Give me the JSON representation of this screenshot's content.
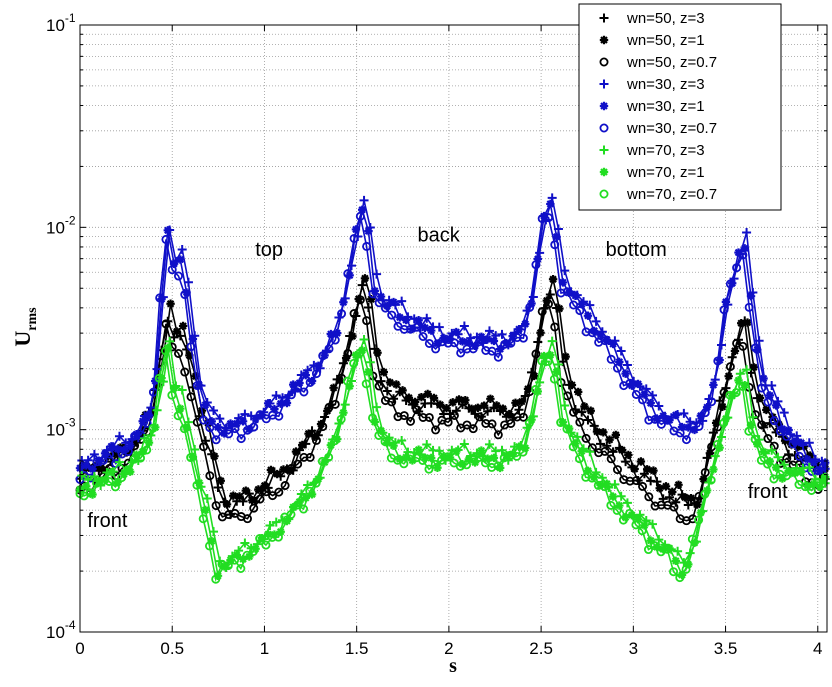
{
  "chart_data": {
    "type": "line",
    "xlabel": "s",
    "ylabel": "U",
    "ylabel_sub": "rms",
    "xlim": [
      0,
      4.05
    ],
    "ylim": [
      0.0001,
      0.1
    ],
    "yscale": "log",
    "grid": true,
    "legend_position": "top-right",
    "xticks": [
      0,
      0.5,
      1,
      1.5,
      2,
      2.5,
      3,
      3.5,
      4
    ],
    "xtick_labels": [
      "0",
      "0.5",
      "1",
      "1.5",
      "2",
      "2.5",
      "3",
      "3.5",
      "4"
    ],
    "yticks": [
      {
        "value": 0.1,
        "base": "10",
        "exp": "-1"
      },
      {
        "value": 0.01,
        "base": "10",
        "exp": "-2"
      },
      {
        "value": 0.001,
        "base": "10",
        "exp": "-3"
      },
      {
        "value": 0.0001,
        "base": "10",
        "exp": "-4"
      }
    ],
    "annotations": [
      {
        "text": "top",
        "x": 0.95,
        "y": 0.0072
      },
      {
        "text": "back",
        "x": 1.83,
        "y": 0.0085
      },
      {
        "text": "bottom",
        "x": 2.85,
        "y": 0.0072
      },
      {
        "text": "front",
        "x": 0.04,
        "y": 0.00033
      },
      {
        "text": "front",
        "x": 3.62,
        "y": 0.00046
      }
    ],
    "profiles": {
      "blue": [
        [
          0,
          0.00062
        ],
        [
          0.1,
          0.00072
        ],
        [
          0.2,
          0.0008
        ],
        [
          0.3,
          0.0009
        ],
        [
          0.38,
          0.0012
        ],
        [
          0.42,
          0.0022
        ],
        [
          0.46,
          0.0085
        ],
        [
          0.48,
          0.0095
        ],
        [
          0.52,
          0.0055
        ],
        [
          0.55,
          0.0072
        ],
        [
          0.58,
          0.005
        ],
        [
          0.62,
          0.0025
        ],
        [
          0.66,
          0.0013
        ],
        [
          0.72,
          0.0011
        ],
        [
          0.8,
          0.001
        ],
        [
          0.9,
          0.00108
        ],
        [
          1.0,
          0.0012
        ],
        [
          1.1,
          0.0014
        ],
        [
          1.2,
          0.0017
        ],
        [
          1.3,
          0.0021
        ],
        [
          1.4,
          0.0032
        ],
        [
          1.45,
          0.0055
        ],
        [
          1.5,
          0.0095
        ],
        [
          1.53,
          0.012
        ],
        [
          1.56,
          0.0098
        ],
        [
          1.6,
          0.0052
        ],
        [
          1.65,
          0.0042
        ],
        [
          1.7,
          0.0039
        ],
        [
          1.8,
          0.0034
        ],
        [
          1.9,
          0.003
        ],
        [
          2.0,
          0.0028
        ],
        [
          2.1,
          0.0028
        ],
        [
          2.2,
          0.0027
        ],
        [
          2.3,
          0.0027
        ],
        [
          2.4,
          0.003
        ],
        [
          2.45,
          0.0045
        ],
        [
          2.5,
          0.0095
        ],
        [
          2.54,
          0.0135
        ],
        [
          2.58,
          0.0095
        ],
        [
          2.62,
          0.0055
        ],
        [
          2.7,
          0.0042
        ],
        [
          2.8,
          0.0032
        ],
        [
          2.9,
          0.0024
        ],
        [
          3.0,
          0.0017
        ],
        [
          3.1,
          0.0013
        ],
        [
          3.2,
          0.0011
        ],
        [
          3.3,
          0.00105
        ],
        [
          3.38,
          0.0011
        ],
        [
          3.45,
          0.0018
        ],
        [
          3.5,
          0.0042
        ],
        [
          3.55,
          0.0058
        ],
        [
          3.6,
          0.0088
        ],
        [
          3.64,
          0.0045
        ],
        [
          3.7,
          0.0017
        ],
        [
          3.8,
          0.00115
        ],
        [
          3.9,
          0.0008
        ],
        [
          4.0,
          0.00068
        ],
        [
          4.05,
          0.00065
        ]
      ],
      "black": [
        [
          0,
          0.00055
        ],
        [
          0.1,
          0.00062
        ],
        [
          0.2,
          0.00068
        ],
        [
          0.3,
          0.00085
        ],
        [
          0.38,
          0.0011
        ],
        [
          0.42,
          0.0017
        ],
        [
          0.46,
          0.0032
        ],
        [
          0.48,
          0.0037
        ],
        [
          0.52,
          0.0024
        ],
        [
          0.55,
          0.0028
        ],
        [
          0.6,
          0.0019
        ],
        [
          0.65,
          0.0011
        ],
        [
          0.7,
          0.00075
        ],
        [
          0.76,
          0.00045
        ],
        [
          0.8,
          0.0004
        ],
        [
          0.9,
          0.00042
        ],
        [
          1.0,
          0.0005
        ],
        [
          1.1,
          0.00058
        ],
        [
          1.2,
          0.00075
        ],
        [
          1.3,
          0.001
        ],
        [
          1.4,
          0.0016
        ],
        [
          1.45,
          0.0025
        ],
        [
          1.5,
          0.004
        ],
        [
          1.53,
          0.0048
        ],
        [
          1.56,
          0.004
        ],
        [
          1.6,
          0.0022
        ],
        [
          1.65,
          0.0016
        ],
        [
          1.7,
          0.0014
        ],
        [
          1.8,
          0.0013
        ],
        [
          1.9,
          0.00125
        ],
        [
          2.0,
          0.0012
        ],
        [
          2.1,
          0.0012
        ],
        [
          2.2,
          0.00118
        ],
        [
          2.3,
          0.00115
        ],
        [
          2.4,
          0.0012
        ],
        [
          2.45,
          0.0018
        ],
        [
          2.5,
          0.0035
        ],
        [
          2.54,
          0.0048
        ],
        [
          2.58,
          0.0038
        ],
        [
          2.62,
          0.002
        ],
        [
          2.7,
          0.0012
        ],
        [
          2.8,
          0.00092
        ],
        [
          2.9,
          0.00075
        ],
        [
          3.0,
          0.00062
        ],
        [
          3.1,
          0.00052
        ],
        [
          3.2,
          0.00045
        ],
        [
          3.28,
          0.00041
        ],
        [
          3.35,
          0.00042
        ],
        [
          3.42,
          0.0008
        ],
        [
          3.48,
          0.0014
        ],
        [
          3.55,
          0.0025
        ],
        [
          3.6,
          0.0032
        ],
        [
          3.64,
          0.0018
        ],
        [
          3.7,
          0.0011
        ],
        [
          3.8,
          0.00085
        ],
        [
          3.9,
          0.0007
        ],
        [
          4.0,
          0.0006
        ],
        [
          4.05,
          0.00058
        ]
      ],
      "green": [
        [
          0,
          0.00052
        ],
        [
          0.1,
          0.00056
        ],
        [
          0.2,
          0.0006
        ],
        [
          0.3,
          0.0007
        ],
        [
          0.38,
          0.0009
        ],
        [
          0.42,
          0.0013
        ],
        [
          0.46,
          0.0024
        ],
        [
          0.48,
          0.0026
        ],
        [
          0.52,
          0.0013
        ],
        [
          0.55,
          0.0014
        ],
        [
          0.6,
          0.0009
        ],
        [
          0.65,
          0.0005
        ],
        [
          0.7,
          0.00035
        ],
        [
          0.74,
          0.00021
        ],
        [
          0.8,
          0.00022
        ],
        [
          0.9,
          0.00025
        ],
        [
          1.0,
          0.00029
        ],
        [
          1.1,
          0.00035
        ],
        [
          1.2,
          0.00045
        ],
        [
          1.3,
          0.0006
        ],
        [
          1.4,
          0.001
        ],
        [
          1.45,
          0.0016
        ],
        [
          1.5,
          0.0023
        ],
        [
          1.53,
          0.0025
        ],
        [
          1.56,
          0.0021
        ],
        [
          1.6,
          0.0012
        ],
        [
          1.65,
          0.0009
        ],
        [
          1.7,
          0.0008
        ],
        [
          1.8,
          0.00076
        ],
        [
          1.9,
          0.00074
        ],
        [
          2.0,
          0.00074
        ],
        [
          2.1,
          0.00075
        ],
        [
          2.2,
          0.00074
        ],
        [
          2.3,
          0.00074
        ],
        [
          2.4,
          0.0008
        ],
        [
          2.45,
          0.0012
        ],
        [
          2.5,
          0.002
        ],
        [
          2.54,
          0.0025
        ],
        [
          2.58,
          0.0021
        ],
        [
          2.62,
          0.0012
        ],
        [
          2.7,
          0.0008
        ],
        [
          2.8,
          0.0006
        ],
        [
          2.9,
          0.00046
        ],
        [
          3.0,
          0.00038
        ],
        [
          3.1,
          0.0003
        ],
        [
          3.2,
          0.00025
        ],
        [
          3.26,
          0.0002
        ],
        [
          3.32,
          0.00026
        ],
        [
          3.4,
          0.0005
        ],
        [
          3.48,
          0.001
        ],
        [
          3.55,
          0.0016
        ],
        [
          3.6,
          0.0019
        ],
        [
          3.64,
          0.0011
        ],
        [
          3.7,
          0.00075
        ],
        [
          3.8,
          0.00065
        ],
        [
          3.9,
          0.0006
        ],
        [
          4.0,
          0.00056
        ],
        [
          4.05,
          0.00055
        ]
      ]
    },
    "series": [
      {
        "name": "wn=50, z=3",
        "color": "#000000",
        "marker": "plus",
        "profile": "black",
        "factor": 1.04,
        "dx": 0.0,
        "phase": 0.0
      },
      {
        "name": "wn=50, z=1",
        "color": "#000000",
        "marker": "star",
        "profile": "black",
        "factor": 1.12,
        "dx": 0.015,
        "phase": 1.3
      },
      {
        "name": "wn=50, z=0.7",
        "color": "#000000",
        "marker": "circle",
        "profile": "black",
        "factor": 0.9,
        "dx": -0.01,
        "phase": 2.1
      },
      {
        "name": "wn=30, z=3",
        "color": "#1010c8",
        "marker": "plus",
        "profile": "blue",
        "factor": 1.06,
        "dx": 0.01,
        "phase": 0.6
      },
      {
        "name": "wn=30, z=1",
        "color": "#1010c8",
        "marker": "star",
        "profile": "blue",
        "factor": 1.0,
        "dx": 0.0,
        "phase": 1.8
      },
      {
        "name": "wn=30, z=0.7",
        "color": "#1010c8",
        "marker": "circle",
        "profile": "blue",
        "factor": 0.92,
        "dx": -0.01,
        "phase": 2.7
      },
      {
        "name": "wn=70, z=3",
        "color": "#22dd22",
        "marker": "plus",
        "profile": "green",
        "factor": 1.05,
        "dx": 0.01,
        "phase": 0.9
      },
      {
        "name": "wn=70, z=1",
        "color": "#22dd22",
        "marker": "star",
        "profile": "green",
        "factor": 0.97,
        "dx": 0.0,
        "phase": 2.3
      },
      {
        "name": "wn=70, z=0.7",
        "color": "#22dd22",
        "marker": "circle",
        "profile": "green",
        "factor": 0.93,
        "dx": -0.012,
        "phase": 3.1
      }
    ]
  }
}
